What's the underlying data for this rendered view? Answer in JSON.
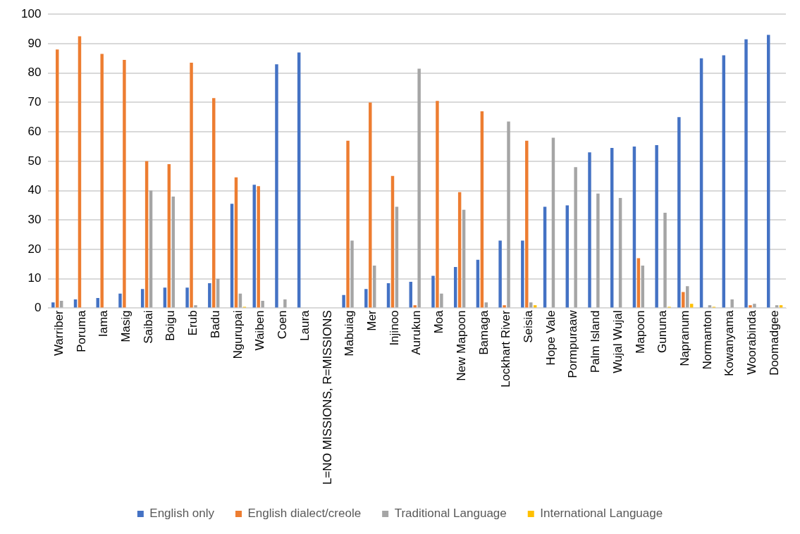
{
  "chart_data": {
    "type": "bar",
    "categories": [
      "Warriber",
      "Poruma",
      "Iama",
      "Masig",
      "Saibai",
      "Boigu",
      "Erub",
      "Badu",
      "Ngurupai",
      "Waiben",
      "Coen",
      "Laura",
      "L=NO MISSIONS, R=MISSIONS",
      "Mabuiag",
      "Mer",
      "Injinoo",
      "Aurukun",
      "Moa",
      "New Mapoon",
      "Bamaga",
      "Lockhart River",
      "Seisia",
      "Hope Vale",
      "Pormpuraaw",
      "Palm Island",
      "Wujal Wujal",
      "Mapoon",
      "Gununa",
      "Napranum",
      "Normanton",
      "Kowanyama",
      "Woorabinda",
      "Doomadgee"
    ],
    "series": [
      {
        "name": "English only",
        "color": "#4472c4",
        "values": [
          2,
          3,
          3.5,
          5,
          6.5,
          7,
          7,
          8.5,
          35.5,
          42,
          83,
          87,
          null,
          4.5,
          6.5,
          8.5,
          9,
          11,
          14,
          16.5,
          23,
          23,
          34.5,
          35,
          53,
          54.5,
          55,
          55.5,
          65,
          85,
          86,
          91.5,
          93
        ]
      },
      {
        "name": "English dialect/creole",
        "color": "#ed7d31",
        "values": [
          88,
          92.5,
          86.5,
          84.5,
          50,
          49,
          83.5,
          71.5,
          44.5,
          41.5,
          0,
          0,
          null,
          57,
          70,
          45,
          1,
          70.5,
          39.5,
          67,
          1,
          57,
          0,
          0,
          0,
          0,
          17,
          0,
          5.5,
          0,
          0,
          1,
          0
        ]
      },
      {
        "name": "Traditional Language",
        "color": "#a5a5a5",
        "values": [
          2.5,
          0,
          0,
          0,
          40,
          38,
          1,
          10,
          5,
          2.5,
          3,
          0,
          null,
          23,
          14.5,
          34.5,
          81.5,
          5,
          33.5,
          2,
          63.5,
          2,
          58,
          48,
          39,
          37.5,
          14.5,
          32.5,
          7.5,
          1,
          3,
          1.5,
          1
        ]
      },
      {
        "name": "International Language",
        "color": "#ffc000",
        "values": [
          0,
          0,
          0,
          0,
          0,
          0,
          0,
          0,
          0.5,
          0,
          0,
          0,
          null,
          0,
          0,
          0,
          0,
          0,
          0,
          0,
          0,
          1,
          0,
          0,
          0,
          0,
          0,
          0.5,
          1.5,
          0.5,
          0,
          0,
          1
        ]
      }
    ],
    "ylim": [
      0,
      100
    ],
    "yticks": [
      0,
      10,
      20,
      30,
      40,
      50,
      60,
      70,
      80,
      90,
      100
    ],
    "grid": "y",
    "legend": "bottom"
  }
}
